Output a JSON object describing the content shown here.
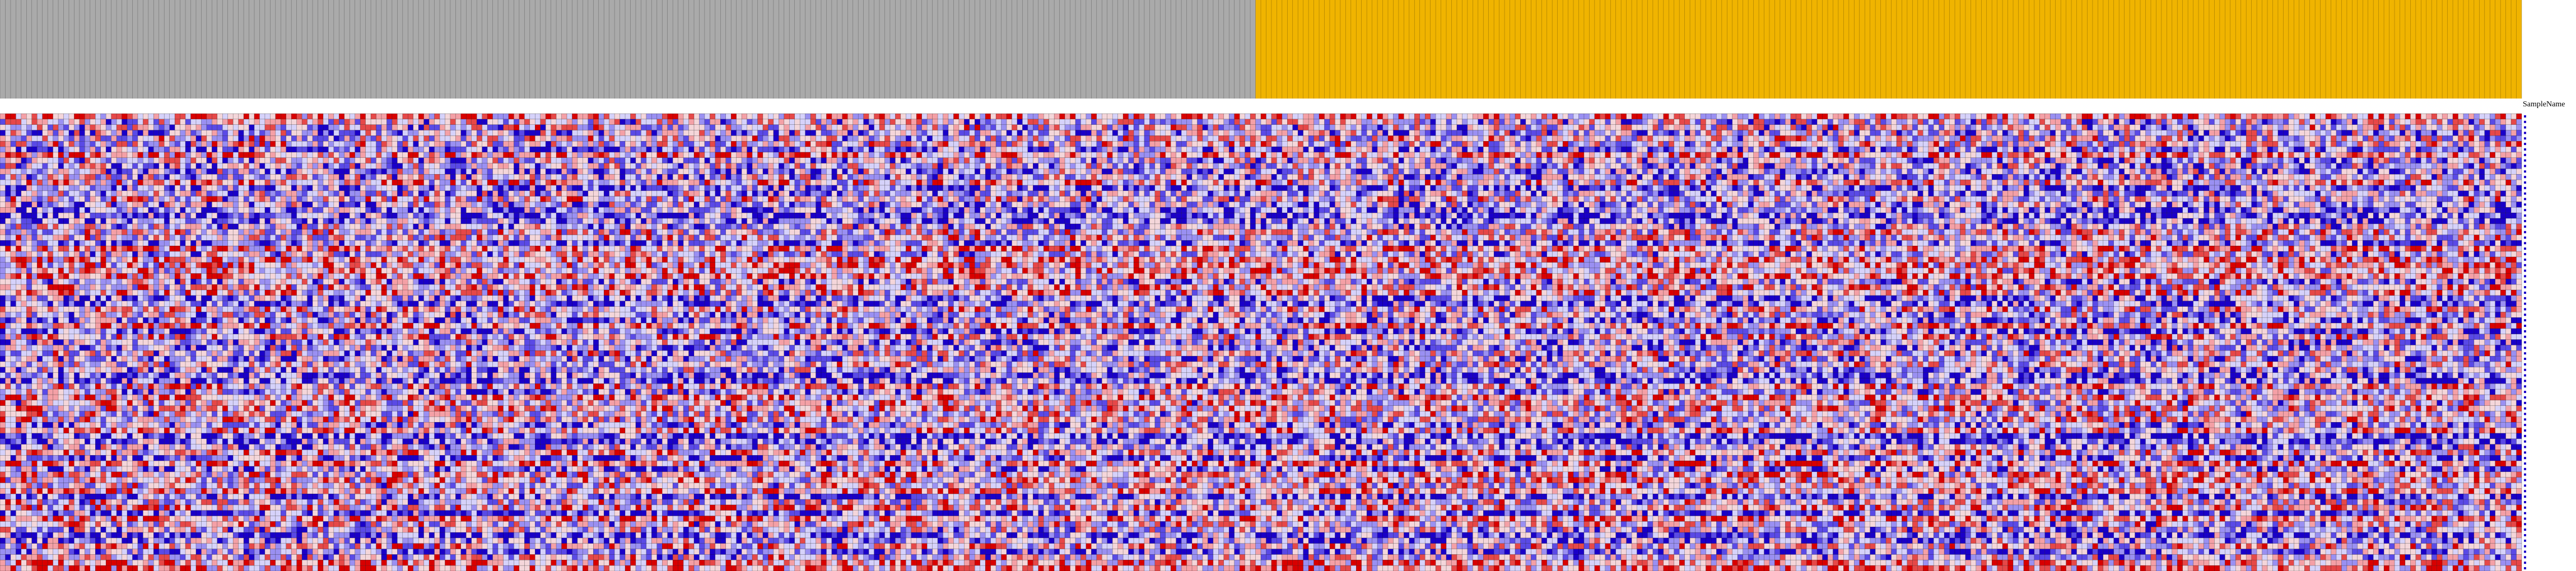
{
  "chart_data": {
    "type": "heatmap",
    "title": "",
    "column_header_label": "SampleName",
    "column_groups": [
      {
        "color": "#aaaaaa",
        "n_columns": 237
      },
      {
        "color": "#f0b400",
        "n_columns": 239
      }
    ],
    "n_rows": 83,
    "color_scale": {
      "low": "#1a00c8",
      "mid_low": "#b8b8ff",
      "mid": "#ffffff",
      "mid_high": "#ff9a9a",
      "high": "#e60000"
    },
    "row_labels": [
      "",
      "",
      "",
      "",
      "",
      "",
      "",
      "",
      "",
      "",
      "",
      "",
      "",
      "",
      "",
      "",
      "",
      "",
      "",
      "",
      "",
      "",
      "",
      "",
      "",
      "",
      "",
      "",
      "",
      "",
      "",
      "",
      "",
      "",
      "",
      "",
      "",
      "",
      "",
      "",
      "",
      "",
      "",
      "",
      "",
      "",
      "",
      "",
      "",
      "",
      "",
      "",
      "",
      "",
      "",
      "",
      "",
      "",
      "",
      "",
      "",
      "",
      "",
      "",
      "",
      "",
      "",
      "",
      "",
      "",
      "",
      "",
      "",
      "",
      "",
      "",
      "",
      ""
    ]
  },
  "colors": {
    "background": "#ffffff",
    "cell_border": "#000000"
  }
}
